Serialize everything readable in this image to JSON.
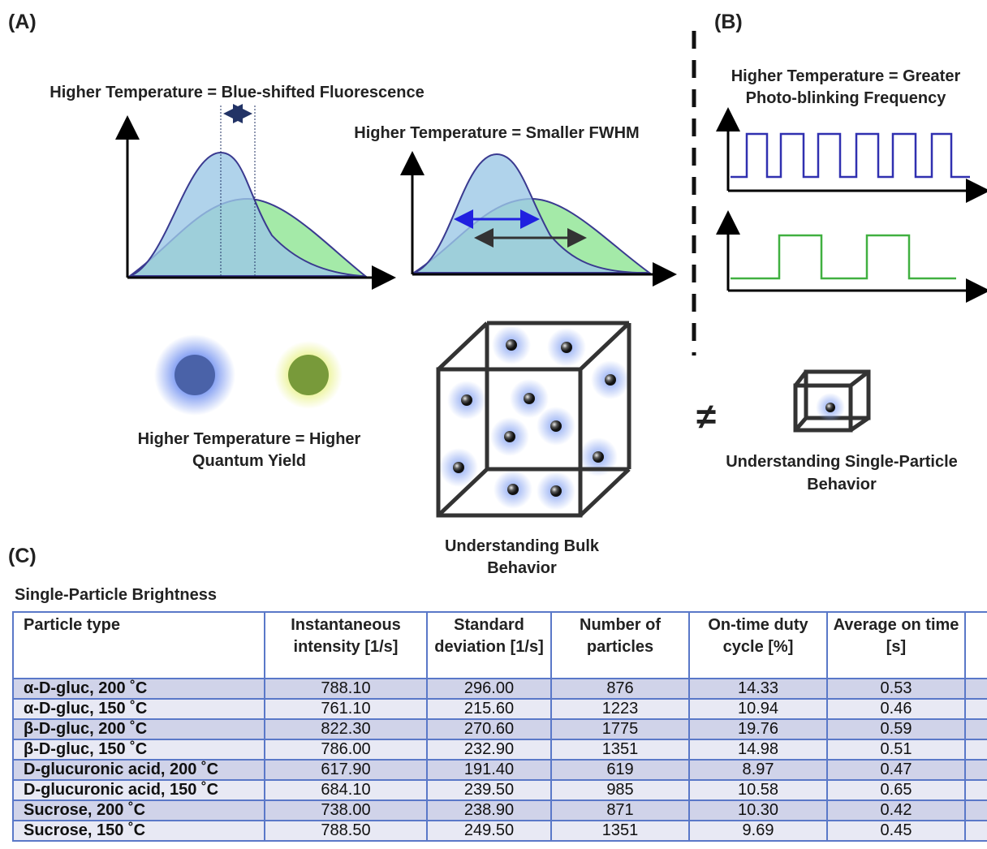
{
  "panel_a": {
    "label": "(A)",
    "spectrum_title": "Higher Temperature = Blue-shifted Fluorescence",
    "fwhm_title": "Higher Temperature = Smaller FWHM",
    "yield_caption": [
      "Higher Temperature = Higher",
      "Quantum Yield"
    ],
    "bulk_caption": [
      "Understanding Bulk",
      "Behavior"
    ]
  },
  "panel_b": {
    "label": "(B)",
    "blink_title": [
      "Higher Temperature = Greater",
      "Photo-blinking Frequency"
    ],
    "not_equal": "≠",
    "single_caption": [
      "Understanding Single-Particle",
      "Behavior"
    ]
  },
  "table": {
    "label": "(C)",
    "title": "Single-Particle Brightness",
    "headers": [
      "Particle type",
      "Instantaneous intensity [1/s]",
      "Standard deviation [1/s]",
      "Number of particles",
      "On-time duty cycle [%]",
      "Average on time [s]"
    ],
    "rows": [
      [
        "α-D-gluc, 200 ˚C",
        "788.10",
        "296.00",
        "876",
        "14.33",
        "0.53"
      ],
      [
        "α-D-gluc, 150 ˚C",
        "761.10",
        "215.60",
        "1223",
        "10.94",
        "0.46"
      ],
      [
        "β-D-gluc, 200 ˚C",
        "822.30",
        "270.60",
        "1775",
        "19.76",
        "0.59"
      ],
      [
        "β-D-gluc, 150 ˚C",
        "786.00",
        "232.90",
        "1351",
        "14.98",
        "0.51"
      ],
      [
        "D-glucuronic acid, 200 ˚C",
        "617.90",
        "191.40",
        "619",
        "8.97",
        "0.47"
      ],
      [
        "D-glucuronic acid, 150 ˚C",
        "684.10",
        "239.50",
        "985",
        "10.58",
        "0.65"
      ],
      [
        "Sucrose, 200 ˚C",
        "738.00",
        "238.90",
        "871",
        "10.30",
        "0.42"
      ],
      [
        "Sucrose, 150 ˚C",
        "788.50",
        "249.50",
        "1351",
        "9.69",
        "0.45"
      ]
    ]
  }
}
